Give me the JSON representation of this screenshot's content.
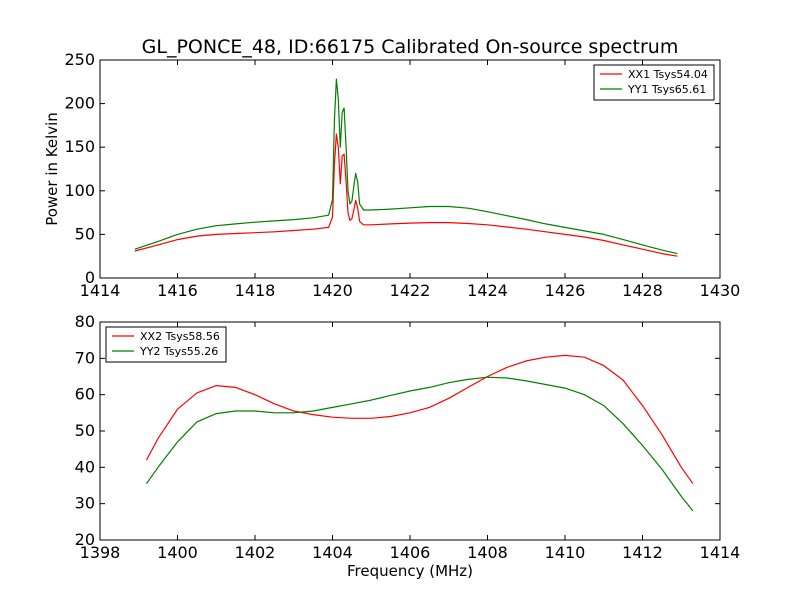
{
  "chart_data": [
    {
      "type": "line",
      "title": "GL_PONCE_48, ID:66175 Calibrated On-source spectrum",
      "xlabel": "",
      "ylabel": "Power in Kelvin",
      "xlim": [
        1414,
        1430
      ],
      "ylim": [
        0,
        250
      ],
      "xticks": [
        "1414",
        "1416",
        "1418",
        "1420",
        "1422",
        "1424",
        "1426",
        "1428",
        "1430"
      ],
      "yticks": [
        "0",
        "50",
        "100",
        "150",
        "200",
        "250"
      ],
      "legend_position": "top-right",
      "grid": false,
      "series": [
        {
          "name": "XX1 Tsys54.04",
          "color": "#ff0000",
          "x": [
            1414.9,
            1415.5,
            1416.0,
            1416.5,
            1417.0,
            1417.5,
            1418.0,
            1418.5,
            1419.0,
            1419.5,
            1419.9,
            1420.0,
            1420.05,
            1420.1,
            1420.15,
            1420.2,
            1420.25,
            1420.3,
            1420.35,
            1420.4,
            1420.45,
            1420.5,
            1420.55,
            1420.6,
            1420.65,
            1420.7,
            1420.8,
            1421.0,
            1421.5,
            1422.0,
            1422.5,
            1423.0,
            1423.5,
            1424.0,
            1424.5,
            1425.0,
            1425.5,
            1426.0,
            1426.5,
            1427.0,
            1427.5,
            1428.0,
            1428.5,
            1428.9
          ],
          "values": [
            31,
            38,
            44,
            48,
            50,
            51,
            52,
            53,
            54.5,
            56,
            58,
            70,
            130,
            165,
            150,
            108,
            140,
            142,
            110,
            75,
            66,
            68,
            78,
            89,
            80,
            65,
            61,
            61,
            62,
            63,
            63.5,
            63.5,
            62.5,
            61,
            58.5,
            56,
            53,
            50,
            47,
            43,
            38,
            33,
            28,
            25
          ]
        },
        {
          "name": "YY1 Tsys65.61",
          "color": "#008000",
          "x": [
            1414.9,
            1415.5,
            1416.0,
            1416.5,
            1417.0,
            1417.5,
            1418.0,
            1418.5,
            1419.0,
            1419.5,
            1419.9,
            1420.0,
            1420.05,
            1420.1,
            1420.15,
            1420.2,
            1420.25,
            1420.3,
            1420.35,
            1420.4,
            1420.45,
            1420.5,
            1420.55,
            1420.6,
            1420.65,
            1420.7,
            1420.8,
            1421.0,
            1421.5,
            1422.0,
            1422.5,
            1423.0,
            1423.5,
            1424.0,
            1424.5,
            1425.0,
            1425.5,
            1426.0,
            1426.5,
            1427.0,
            1427.5,
            1428.0,
            1428.5,
            1428.9
          ],
          "values": [
            33,
            42,
            50,
            56,
            60,
            62,
            64,
            65.5,
            67,
            69,
            72,
            90,
            180,
            228,
            205,
            150,
            190,
            195,
            150,
            100,
            85,
            88,
            105,
            120,
            110,
            85,
            78,
            78,
            79,
            80.5,
            82,
            82,
            80,
            76,
            71.5,
            67,
            62,
            58,
            54,
            50,
            44,
            38,
            32,
            28
          ]
        }
      ]
    },
    {
      "type": "line",
      "title": "",
      "xlabel": "Frequency (MHz)",
      "ylabel": "",
      "xlim": [
        1398,
        1414
      ],
      "ylim": [
        20,
        80
      ],
      "xticks": [
        "1398",
        "1400",
        "1402",
        "1404",
        "1406",
        "1408",
        "1410",
        "1412",
        "1414"
      ],
      "yticks": [
        "20",
        "30",
        "40",
        "50",
        "60",
        "70",
        "80"
      ],
      "legend_position": "top-left",
      "grid": false,
      "series": [
        {
          "name": "XX2 Tsys58.56",
          "color": "#ff0000",
          "x": [
            1399.2,
            1399.5,
            1400.0,
            1400.5,
            1401.0,
            1401.5,
            1402.0,
            1402.5,
            1403.0,
            1403.5,
            1404.0,
            1404.5,
            1405.0,
            1405.5,
            1406.0,
            1406.5,
            1407.0,
            1407.5,
            1408.0,
            1408.5,
            1409.0,
            1409.5,
            1410.0,
            1410.5,
            1411.0,
            1411.5,
            1412.0,
            1412.5,
            1413.0,
            1413.3
          ],
          "values": [
            42,
            48,
            56,
            60.5,
            62.5,
            62,
            60,
            57.5,
            55.5,
            54.5,
            53.8,
            53.5,
            53.5,
            54,
            55,
            56.5,
            59,
            62,
            65,
            67.5,
            69.3,
            70.3,
            70.8,
            70.3,
            68,
            64,
            57,
            49,
            40,
            35.5
          ]
        },
        {
          "name": "YY2 Tsys55.26",
          "color": "#008000",
          "x": [
            1399.2,
            1399.5,
            1400.0,
            1400.5,
            1401.0,
            1401.5,
            1402.0,
            1402.5,
            1403.0,
            1403.5,
            1404.0,
            1404.5,
            1405.0,
            1405.5,
            1406.0,
            1406.5,
            1407.0,
            1407.5,
            1408.0,
            1408.5,
            1409.0,
            1409.5,
            1410.0,
            1410.5,
            1411.0,
            1411.5,
            1412.0,
            1412.5,
            1413.0,
            1413.3
          ],
          "values": [
            35.5,
            40,
            47,
            52.5,
            54.8,
            55.5,
            55.5,
            55,
            55,
            55.5,
            56.5,
            57.5,
            58.5,
            59.8,
            61,
            62,
            63.3,
            64.2,
            64.8,
            64.6,
            63.8,
            62.8,
            61.8,
            60,
            57,
            52,
            46,
            39.5,
            32,
            28
          ]
        }
      ]
    }
  ]
}
